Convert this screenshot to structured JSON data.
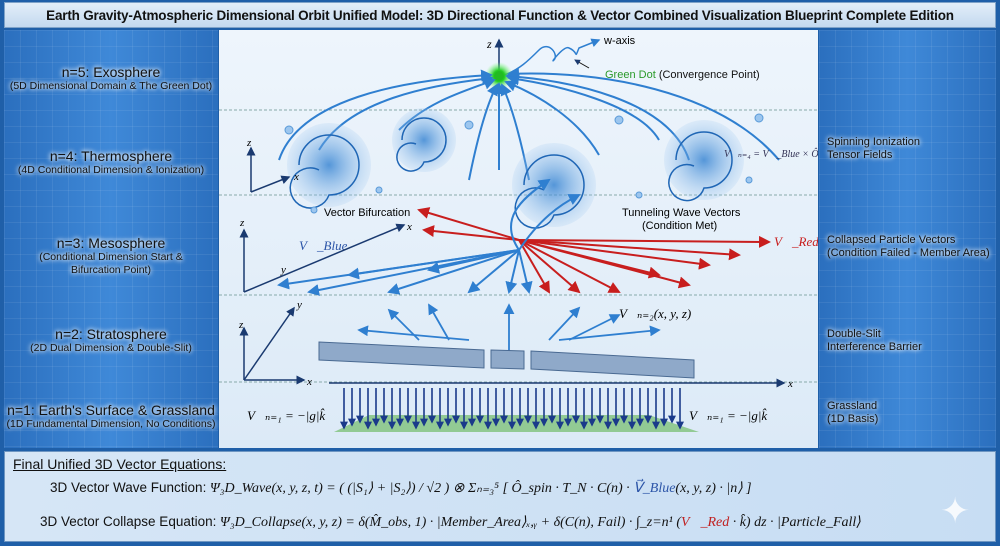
{
  "title": "Earth Gravity-Atmospheric Dimensional Orbit Unified Model: 3D Directional Function & Vector Combined Visualization Blueprint Complete Edition",
  "layers": [
    {
      "heading": "n=5: Exosphere",
      "sub": "(5D Dimensional Domain & The Green Dot)"
    },
    {
      "heading": "n=4: Thermosphere",
      "sub": "(4D Conditional Dimension & Ionization)"
    },
    {
      "heading": "n=3: Mesosphere",
      "sub": "(Conditional Dimension Start & Bifurcation Point)"
    },
    {
      "heading": "n=2: Stratosphere",
      "sub": "(2D Dual Dimension & Double-Slit)"
    },
    {
      "heading": "n=1: Earth's Surface & Grassland",
      "sub": "(1D Fundamental Dimension, No Conditions)"
    }
  ],
  "right_labels": [
    {
      "l1": "Spinning Ionization",
      "l2": "Tensor Fields"
    },
    {
      "l1": "Collapsed Particle Vectors",
      "l2": "(Condition Failed - Member Area)"
    },
    {
      "l1": "Double-Slit",
      "l2": "Interference Barrier"
    },
    {
      "l1": "Grassland",
      "l2": "(1D Basis)"
    }
  ],
  "diagram": {
    "w_axis": "w-axis",
    "z": "z",
    "x": "x",
    "y": "y",
    "green_dot": "Green Dot",
    "convergence": "(Convergence Point)",
    "v_n4": "V⃗ₙ₌₄ = V⃗_Blue × Ô_spin",
    "vector_bifurcation": "Vector Bifurcation",
    "tunneling_1": "Tunneling Wave Vectors",
    "tunneling_2": "(Condition Met)",
    "v_blue": "V⃗_Blue",
    "v_red": "V⃗_Red",
    "v_n2": "V⃗ₙ₌₂(x, y, z)",
    "v_n1": "V⃗ₙ₌₁ = −|g|k̂",
    "colors": {
      "blue": "#2f7fd0",
      "red": "#c81e1e",
      "green": "#2ecc40"
    }
  },
  "equations": {
    "heading": "Final Unified 3D Vector Equations:",
    "wave_label": "3D Vector Wave Function:",
    "wave_expr_1": "Ψ₃D_Wave(x, y, z, t) = ( (|S₁⟩ + |S₂⟩) / √2 ) ⊗ Σₙ₌₃⁵ [ Ô_spin · T_N · C(n) · ",
    "wave_blue": "V⃗_Blue",
    "wave_expr_2": "(x, y, z) · |n⟩ ]",
    "collapse_label": "3D Vector Collapse Equation:",
    "collapse_expr_1": "Ψ₃D_Collapse(x, y, z) = δ(M̂_obs, 1) · |Member_Area⟩ₓ,ᵧ + δ(C(n), Fail) · ∫_z=n¹ (",
    "collapse_red": "V⃗_Red",
    "collapse_expr_2": " · k̂) dz · |Particle_Fall⟩"
  }
}
